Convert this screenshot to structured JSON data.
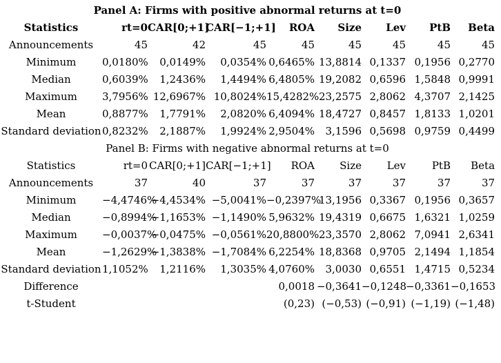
{
  "colors": {
    "text": "#000000",
    "background": "#ffffff"
  },
  "table": {
    "columns": [
      "Statistics",
      "rt=0",
      "CAR[0;+1]",
      "CAR[−1;+1]",
      "ROA",
      "Size",
      "Lev",
      "PtB",
      "Beta"
    ],
    "panels": [
      {
        "id": "panel-a",
        "title": "Panel A: Firms with positive abnormal returns at t=0",
        "bold": true,
        "rows": [
          {
            "label": "Announcements",
            "values": [
              "45",
              "42",
              "45",
              "45",
              "45",
              "45",
              "45",
              "45"
            ]
          },
          {
            "label": "Minimum",
            "values": [
              "0,0180%",
              "0,0149%",
              "0,0354%",
              "0,6465%",
              "13,8814",
              "0,1337",
              "0,1956",
              "0,2770"
            ]
          },
          {
            "label": "Median",
            "values": [
              "0,6039%",
              "1,2436%",
              "1,4494%",
              "6,4805%",
              "19,2082",
              "0,6596",
              "1,5848",
              "0,9991"
            ]
          },
          {
            "label": "Maximum",
            "values": [
              "3,7956%",
              "12,6967%",
              "10,8024%",
              "15,4282%",
              "23,2575",
              "2,8062",
              "4,3707",
              "2,1425"
            ]
          },
          {
            "label": "Mean",
            "values": [
              "0,8877%",
              "1,7791%",
              "2,0820%",
              "6,4094%",
              "18,4727",
              "0,8457",
              "1,8133",
              "1,0201"
            ]
          },
          {
            "label": "Standard deviation",
            "values": [
              "0,8232%",
              "2,1887%",
              "1,9924%",
              "2,9504%",
              "3,1596",
              "0,5698",
              "0,9759",
              "0,4499"
            ]
          }
        ]
      },
      {
        "id": "panel-b",
        "title": "Panel B: Firms with negative abnormal returns at t=0",
        "bold": false,
        "rows": [
          {
            "label": "Announcements",
            "values": [
              "37",
              "40",
              "37",
              "37",
              "37",
              "37",
              "37",
              "37"
            ]
          },
          {
            "label": "Minimum",
            "values": [
              "−4,4746%",
              "−4,4534%",
              "−5,0041%",
              "−0,2397%",
              "13,1956",
              "0,3367",
              "0,1956",
              "0,3657"
            ]
          },
          {
            "label": "Median",
            "values": [
              "−0,8994%",
              "−1,1653%",
              "−1,1490%",
              "5,9632%",
              "19,4319",
              "0,6675",
              "1,6321",
              "1,0259"
            ]
          },
          {
            "label": "Maximum",
            "values": [
              "−0,0037%",
              "−0,0475%",
              "−0,0561%",
              "20,8800%",
              "23,3570",
              "2,8062",
              "7,0941",
              "2,6341"
            ]
          },
          {
            "label": "Mean",
            "values": [
              "−1,2629%",
              "−1,3838%",
              "−1,7084%",
              "6,2254%",
              "18,8368",
              "0,9705",
              "2,1494",
              "1,1854"
            ]
          },
          {
            "label": "Standard deviation",
            "values": [
              "1,1052%",
              "1,2116%",
              "1,3035%",
              "4,0760%",
              "3,0030",
              "0,6551",
              "1,4715",
              "0,5234"
            ]
          },
          {
            "label": "Difference",
            "values": [
              "",
              "",
              "",
              "0,0018",
              "−0,3641",
              "−0,1248",
              "−0,3361",
              "−0,1653"
            ]
          },
          {
            "label": "t-Student",
            "values": [
              "",
              "",
              "",
              "(0,23)",
              "(−0,53)",
              "(−0,91)",
              "(−1,19)",
              "(−1,48)"
            ]
          }
        ]
      }
    ]
  }
}
